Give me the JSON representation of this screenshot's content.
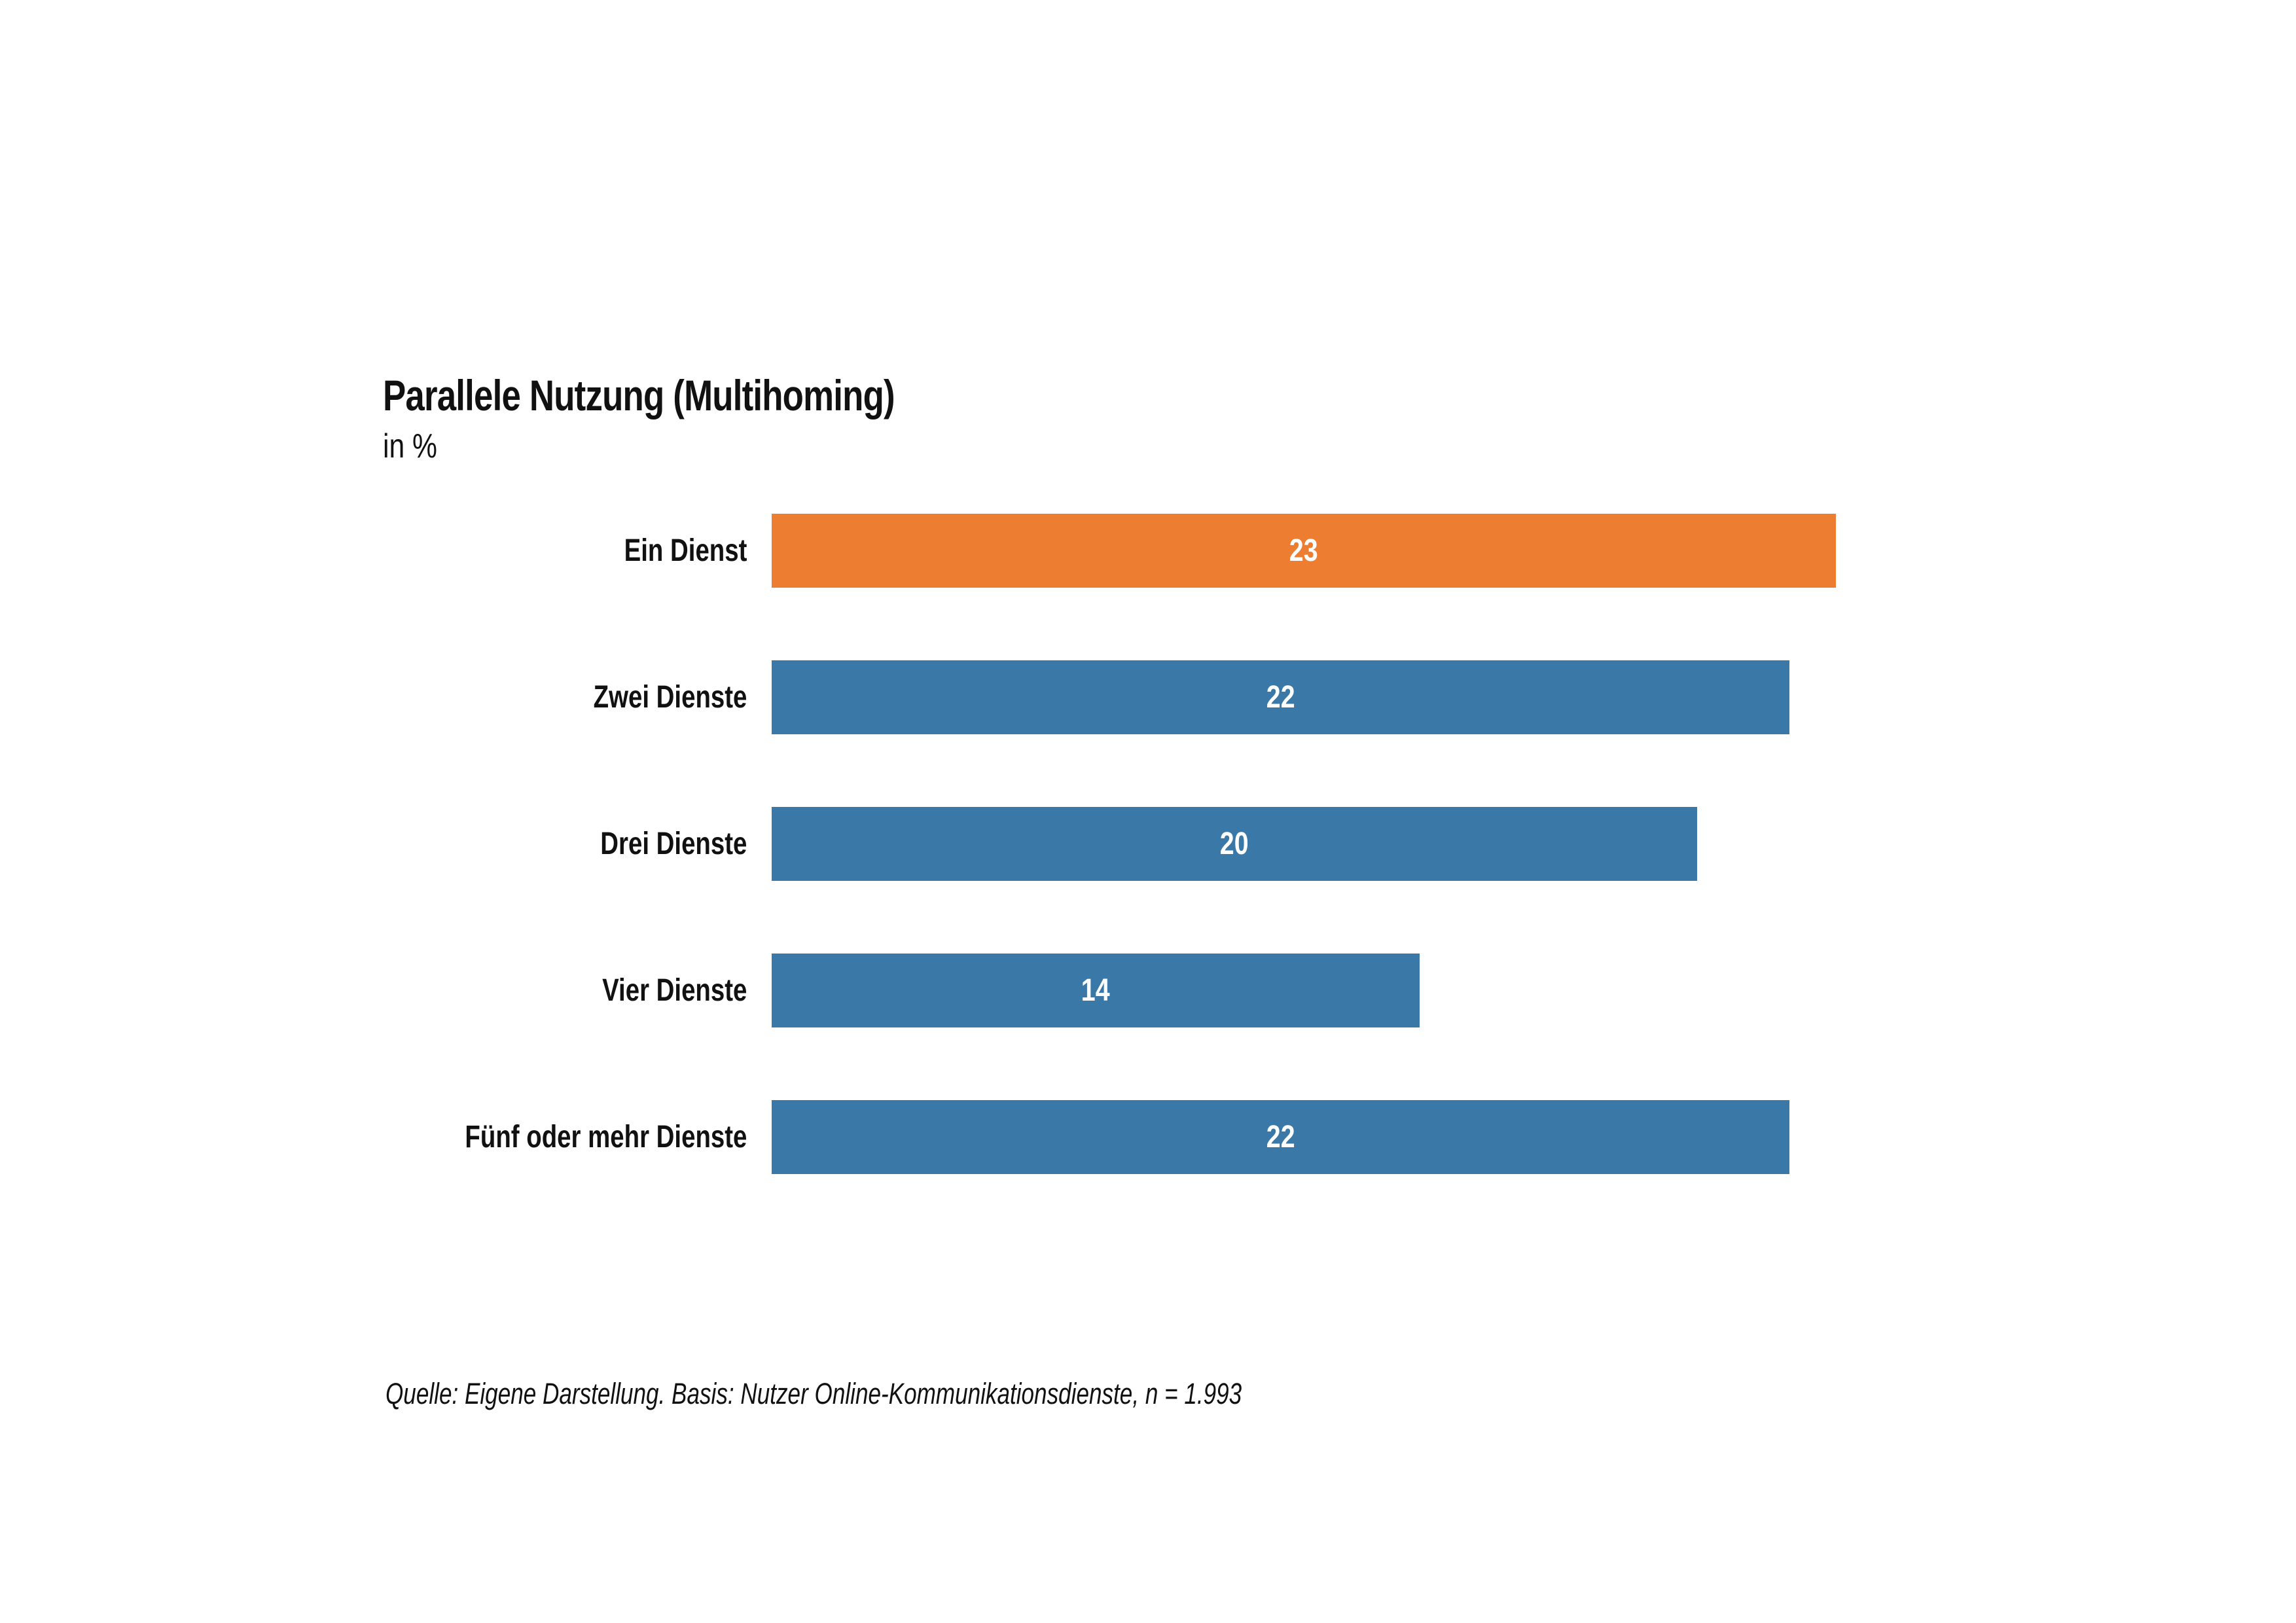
{
  "chart": {
    "title": "Parallele Nutzung (Multihoming)",
    "subtitle": "in %",
    "source": "Quelle: Eigene Darstellung. Basis: Nutzer Online-Kommunikationsdienste, n = 1.993"
  },
  "chart_data": {
    "type": "bar",
    "orientation": "horizontal",
    "title": "Parallele Nutzung (Multihoming)",
    "subtitle": "in %",
    "categories": [
      "Ein Dienst",
      "Zwei Dienste",
      "Drei Dienste",
      "Vier Dienste",
      "Fünf oder mehr Dienste"
    ],
    "values": [
      23,
      22,
      20,
      14,
      22
    ],
    "unit": "%",
    "bar_colors": [
      "#EC7D31",
      "#3A78A7",
      "#3A78A7",
      "#3A78A7",
      "#3A78A7"
    ],
    "highlight_color": "#EC7D31",
    "default_color": "#3A78A7",
    "value_label_color": "#FFFFFF",
    "value_label_position": "inside-center",
    "grid": false,
    "legend": false,
    "axis_visible": false,
    "source": "Quelle: Eigene Darstellung. Basis: Nutzer Online-Kommunikationsdienste, n = 1.993"
  }
}
